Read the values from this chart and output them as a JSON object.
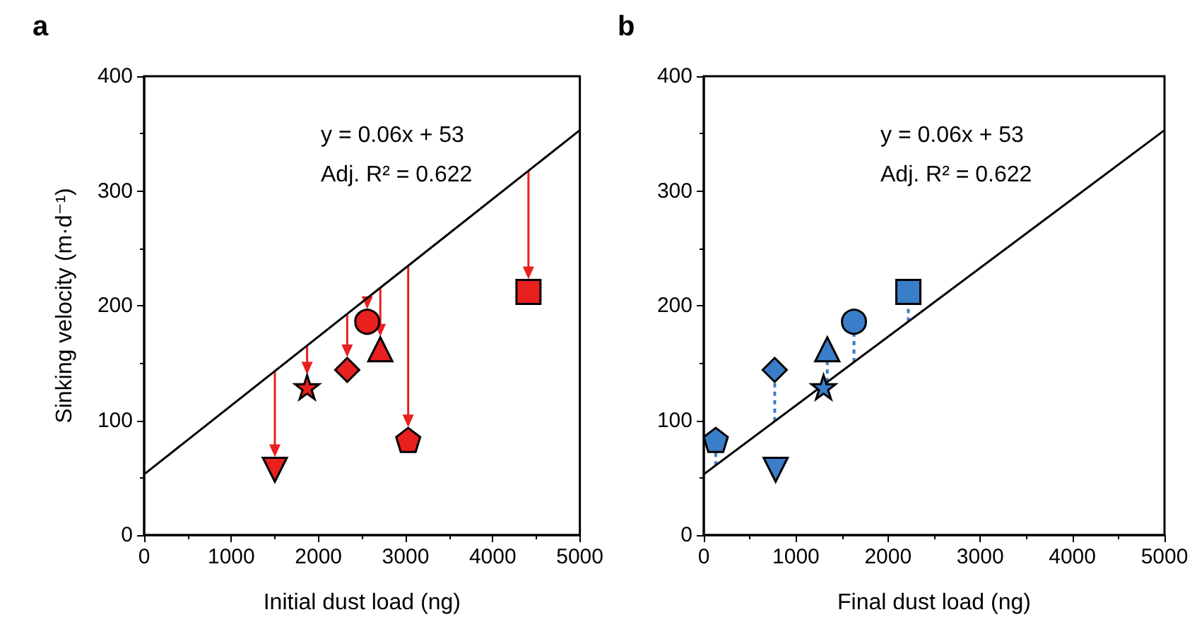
{
  "chart_data": [
    {
      "type": "scatter",
      "title": "a",
      "xlabel": "Initial dust load (ng)",
      "ylabel": "Sinking velocity (m·d⁻¹)",
      "xlim": [
        0,
        5000
      ],
      "ylim": [
        0,
        400
      ],
      "xticks": [
        0,
        1000,
        2000,
        3000,
        4000,
        5000
      ],
      "yticks": [
        0,
        100,
        200,
        300,
        400
      ],
      "annotations": [
        "y = 0.06x + 53",
        "Adj. R² = 0.622"
      ],
      "series": [
        {
          "type": "line",
          "x": [
            0,
            5000
          ],
          "values": [
            53,
            353
          ],
          "color": "#000000",
          "marker": "none",
          "line_style": "solid"
        },
        {
          "x": [
            1500
          ],
          "values": [
            57
          ],
          "color": "#e8201f",
          "marker": "triangle-down"
        },
        {
          "x": [
            1870
          ],
          "values": [
            129
          ],
          "color": "#e8201f",
          "marker": "star"
        },
        {
          "x": [
            2330
          ],
          "values": [
            144
          ],
          "color": "#e8201f",
          "marker": "diamond"
        },
        {
          "x": [
            2560
          ],
          "values": [
            186
          ],
          "color": "#e8201f",
          "marker": "circle"
        },
        {
          "x": [
            2710
          ],
          "values": [
            162
          ],
          "color": "#e8201f",
          "marker": "triangle"
        },
        {
          "x": [
            3030
          ],
          "values": [
            83
          ],
          "color": "#e8201f"
        },
        {
          "x": [
            4410
          ],
          "values": [
            212
          ],
          "color": "#e8201f",
          "marker": "square"
        }
      ]
    },
    {
      "type": "scatter",
      "title": "b",
      "xlabel": "Final dust load (ng)",
      "xlim": [
        0,
        5000
      ],
      "ylim": [
        0,
        400
      ],
      "xticks": [
        0,
        1000,
        2000,
        3000,
        4000,
        5000
      ],
      "yticks": [
        0,
        100,
        200,
        300,
        400
      ],
      "annotations": [
        "y = 0.06x + 53",
        "Adj. R² = 0.622"
      ],
      "series": [
        {
          "type": "line",
          "x": [
            0,
            5000
          ],
          "values": [
            53,
            353
          ],
          "color": "#000000",
          "marker": "none",
          "line_style": "solid"
        },
        {
          "x": [
            780
          ],
          "values": [
            57
          ],
          "color": "#3a7dc9",
          "marker": "triangle-down"
        },
        {
          "x": [
            1300
          ],
          "values": [
            129
          ],
          "color": "#3a7dc9",
          "marker": "star"
        },
        {
          "x": [
            770
          ],
          "values": [
            144
          ],
          "color": "#3a7dc9",
          "marker": "diamond"
        },
        {
          "x": [
            1630
          ],
          "values": [
            186
          ],
          "color": "#3a7dc9",
          "marker": "circle"
        },
        {
          "x": [
            1340
          ],
          "values": [
            162
          ],
          "color": "#3a7dc9",
          "marker": "triangle"
        },
        {
          "x": [
            130
          ],
          "values": [
            83
          ],
          "color": "#3a7dc9"
        },
        {
          "x": [
            2220
          ],
          "values": [
            212
          ],
          "color": "#3a7dc9",
          "marker": "square"
        }
      ]
    }
  ]
}
